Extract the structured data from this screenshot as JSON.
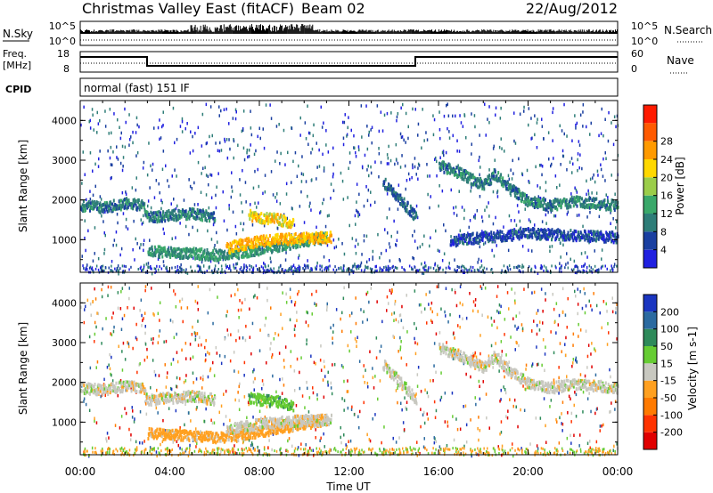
{
  "header": {
    "title": "Christmas Valley East (fitACF)",
    "beam": "Beam 02",
    "date": "22/Aug/2012"
  },
  "strips": {
    "nsky_label": "N.Sky",
    "nsearch_label": "N.Search",
    "left_ticks": [
      "10^5",
      "10^0"
    ],
    "right_ticks": [
      "10^5",
      "10^0"
    ],
    "freq_label_1": "Freq.",
    "freq_label_2": "[MHz]",
    "freq_ticks": [
      "18",
      "8"
    ],
    "nave_ticks": [
      "60",
      "0"
    ],
    "nave_label": "Nave",
    "cpid_label": "CPID",
    "cpid_value": "normal (fast) 151 IF"
  },
  "chart_data": [
    {
      "type": "heatmap",
      "title": "",
      "xlabel": "Time UT",
      "ylabel": "Slant Range [km]",
      "x_ticks": [
        "00:00",
        "04:00",
        "08:00",
        "12:00",
        "16:00",
        "20:00",
        "00:00"
      ],
      "y_ticks": [
        1000,
        2000,
        3000,
        4000
      ],
      "xlim_hours": [
        0,
        24
      ],
      "ylim_km": [
        180,
        4500
      ],
      "colorbar": {
        "label": "Power [dB]",
        "ticks": [
          4,
          8,
          12,
          16,
          20,
          24,
          28
        ],
        "colors": [
          "#2020e0",
          "#1a3fa0",
          "#2e7d78",
          "#3aa86a",
          "#9bcd4a",
          "#ffd800",
          "#ff9a00",
          "#ff5a00",
          "#ff1a00"
        ]
      },
      "features": [
        {
          "name": "band",
          "t": [
            0,
            1,
            2,
            2.8,
            3,
            4,
            5,
            6
          ],
          "range_km": [
            1900,
            1850,
            1950,
            1900,
            1600,
            1650,
            1700,
            1600
          ],
          "level_db": 10
        },
        {
          "name": "band",
          "t": [
            3,
            4,
            5,
            6,
            7,
            8,
            9,
            10,
            11
          ],
          "range_km": [
            750,
            720,
            700,
            650,
            700,
            800,
            900,
            1000,
            1100
          ],
          "level_db": 12
        },
        {
          "name": "band",
          "t": [
            6.5,
            7,
            8,
            9,
            10,
            11.2
          ],
          "range_km": [
            820,
            900,
            1000,
            1050,
            1080,
            1100
          ],
          "level_db": 24
        },
        {
          "name": "band",
          "t": [
            7.5,
            8,
            8.8,
            9.5
          ],
          "range_km": [
            1650,
            1600,
            1550,
            1450
          ],
          "level_db": 22
        },
        {
          "name": "band",
          "t": [
            13.5,
            14,
            14.5,
            15
          ],
          "range_km": [
            2500,
            2200,
            1900,
            1600
          ],
          "level_db": 8
        },
        {
          "name": "band",
          "t": [
            16,
            17,
            18,
            18.5,
            19,
            20,
            21,
            22,
            23,
            24
          ],
          "range_km": [
            2900,
            2700,
            2400,
            2700,
            2400,
            2000,
            1900,
            2000,
            1950,
            1900
          ],
          "level_db": 10
        },
        {
          "name": "band",
          "t": [
            16.5,
            18,
            20,
            22,
            24
          ],
          "range_km": [
            1000,
            1100,
            1200,
            1150,
            1100
          ],
          "level_db": 6
        }
      ]
    },
    {
      "type": "heatmap",
      "title": "",
      "xlabel": "Time UT",
      "ylabel": "Slant Range [km]",
      "x_ticks": [
        "00:00",
        "04:00",
        "08:00",
        "12:00",
        "16:00",
        "20:00",
        "00:00"
      ],
      "y_ticks": [
        1000,
        2000,
        3000,
        4000
      ],
      "xlim_hours": [
        0,
        24
      ],
      "ylim_km": [
        180,
        4500
      ],
      "colorbar": {
        "label": "Velocity [m s-1]",
        "ticks": [
          200,
          100,
          50,
          15,
          -15,
          -50,
          -100,
          -200
        ],
        "colors": [
          "#1a35c0",
          "#2b6aa0",
          "#2e8a5a",
          "#66cc33",
          "#c8c8c0",
          "#ffa020",
          "#ff7a00",
          "#ff3300",
          "#e00000"
        ]
      },
      "features": [
        {
          "name": "band",
          "t": [
            0,
            1,
            2,
            2.8,
            3,
            4,
            5,
            6
          ],
          "range_km": [
            1900,
            1850,
            1950,
            1900,
            1600,
            1650,
            1700,
            1600
          ],
          "velocity": 0
        },
        {
          "name": "band",
          "t": [
            3,
            4,
            5,
            6,
            7,
            8,
            9,
            10,
            11
          ],
          "range_km": [
            750,
            720,
            700,
            650,
            700,
            800,
            900,
            1000,
            1100
          ],
          "velocity": -30
        },
        {
          "name": "band",
          "t": [
            6.5,
            7,
            8,
            9,
            10,
            11.2
          ],
          "range_km": [
            820,
            900,
            1000,
            1050,
            1080,
            1100
          ],
          "velocity": 0
        },
        {
          "name": "band",
          "t": [
            7.5,
            8,
            8.8,
            9.5
          ],
          "range_km": [
            1650,
            1600,
            1550,
            1450
          ],
          "velocity": 40
        },
        {
          "name": "band",
          "t": [
            13.5,
            14,
            14.5,
            15
          ],
          "range_km": [
            2500,
            2200,
            1900,
            1600
          ],
          "velocity": 0
        },
        {
          "name": "band",
          "t": [
            16,
            17,
            18,
            18.5,
            19,
            20,
            21,
            22,
            23,
            24
          ],
          "range_km": [
            2900,
            2700,
            2400,
            2700,
            2400,
            2000,
            1900,
            2000,
            1950,
            1900
          ],
          "velocity": 0
        }
      ]
    }
  ]
}
